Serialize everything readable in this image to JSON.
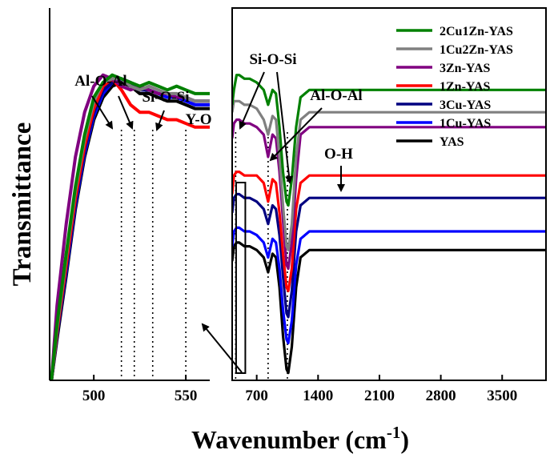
{
  "figure": {
    "ylabel": "Transmittance",
    "xlabel_main": "Wavenumber (cm",
    "xlabel_sup": "-1",
    "xlabel_close": ")"
  },
  "chart_data": [
    {
      "type": "line",
      "title": "",
      "xlabel": "Wavenumber (cm-1)",
      "ylabel": "Transmittance",
      "xlim": [
        476,
        563
      ],
      "ylim": [
        0,
        1
      ],
      "xticks": [
        500,
        550
      ],
      "xtick_labels": [
        "500",
        "550"
      ],
      "annotations": [
        {
          "label": "Al-O-Al",
          "x": 515
        },
        {
          "label": "Si-O-Si",
          "x": 532
        },
        {
          "label": "Y-O",
          "x": 550
        }
      ],
      "marker_lines": [
        515,
        522,
        532,
        550
      ],
      "series": [
        {
          "name": "2Cu1Zn-YAS",
          "color": "#008000",
          "x": [
            477,
            480,
            485,
            490,
            495,
            500,
            505,
            510,
            515,
            520,
            525,
            530,
            535,
            540,
            545,
            550,
            555,
            560,
            563
          ],
          "y": [
            0.0,
            0.15,
            0.34,
            0.52,
            0.66,
            0.76,
            0.8,
            0.82,
            0.81,
            0.8,
            0.79,
            0.8,
            0.79,
            0.78,
            0.79,
            0.78,
            0.77,
            0.77,
            0.77
          ]
        },
        {
          "name": "1Cu2Zn-YAS",
          "color": "#808080",
          "x": [
            477,
            480,
            485,
            490,
            495,
            500,
            505,
            510,
            515,
            520,
            525,
            530,
            535,
            540,
            545,
            550,
            555,
            560,
            563
          ],
          "y": [
            0.0,
            0.14,
            0.33,
            0.51,
            0.65,
            0.75,
            0.8,
            0.81,
            0.81,
            0.79,
            0.78,
            0.79,
            0.78,
            0.77,
            0.77,
            0.76,
            0.75,
            0.75,
            0.75
          ]
        },
        {
          "name": "3Zn-YAS",
          "color": "#800080",
          "x": [
            477,
            480,
            485,
            490,
            495,
            500,
            505,
            510,
            515,
            520,
            525,
            530,
            535,
            540,
            545,
            550,
            555,
            560,
            563
          ],
          "y": [
            0.0,
            0.2,
            0.42,
            0.6,
            0.72,
            0.79,
            0.82,
            0.81,
            0.79,
            0.78,
            0.79,
            0.78,
            0.77,
            0.77,
            0.76,
            0.76,
            0.75,
            0.75,
            0.75
          ]
        },
        {
          "name": "1Zn-YAS",
          "color": "#ff0000",
          "x": [
            477,
            480,
            485,
            490,
            495,
            500,
            505,
            510,
            515,
            520,
            525,
            530,
            535,
            540,
            545,
            550,
            555,
            560,
            563
          ],
          "y": [
            0.0,
            0.13,
            0.31,
            0.49,
            0.63,
            0.73,
            0.79,
            0.81,
            0.78,
            0.74,
            0.72,
            0.72,
            0.71,
            0.7,
            0.7,
            0.69,
            0.68,
            0.68,
            0.68
          ]
        },
        {
          "name": "3Cu-YAS",
          "color": "#000080",
          "x": [
            477,
            480,
            485,
            490,
            495,
            500,
            505,
            510,
            515,
            520,
            525,
            530,
            535,
            540,
            545,
            550,
            555,
            560,
            563
          ],
          "y": [
            0.0,
            0.12,
            0.3,
            0.48,
            0.62,
            0.72,
            0.78,
            0.8,
            0.81,
            0.8,
            0.78,
            0.78,
            0.77,
            0.77,
            0.76,
            0.76,
            0.75,
            0.75,
            0.75
          ]
        },
        {
          "name": "1Cu-YAS",
          "color": "#0000ff",
          "x": [
            477,
            480,
            485,
            490,
            495,
            500,
            505,
            510,
            515,
            520,
            525,
            530,
            535,
            540,
            545,
            550,
            555,
            560,
            563
          ],
          "y": [
            0.0,
            0.12,
            0.29,
            0.47,
            0.61,
            0.71,
            0.77,
            0.8,
            0.81,
            0.79,
            0.78,
            0.78,
            0.77,
            0.76,
            0.76,
            0.75,
            0.74,
            0.74,
            0.74
          ]
        },
        {
          "name": "YAS",
          "color": "#000000",
          "x": [
            477,
            480,
            485,
            490,
            495,
            500,
            505,
            510,
            515,
            520,
            525,
            530,
            535,
            540,
            545,
            550,
            555,
            560,
            563
          ],
          "y": [
            0.0,
            0.11,
            0.28,
            0.46,
            0.6,
            0.7,
            0.76,
            0.79,
            0.8,
            0.79,
            0.77,
            0.77,
            0.76,
            0.75,
            0.75,
            0.74,
            0.73,
            0.73,
            0.73
          ]
        }
      ]
    },
    {
      "type": "line",
      "title": "",
      "xlabel": "Wavenumber (cm-1)",
      "ylabel": "Transmittance",
      "xlim": [
        420,
        4000
      ],
      "ylim": [
        0,
        1
      ],
      "xticks": [
        700,
        1400,
        2100,
        2800,
        3500
      ],
      "xtick_labels": [
        "700",
        "1400",
        "2100",
        "2800",
        "3500"
      ],
      "annotations": [
        {
          "label": "Si-O-Si",
          "x": 1050
        },
        {
          "label": "Al-O-Al",
          "x": 830
        },
        {
          "label": "O-H",
          "x": 1650
        }
      ],
      "marker_lines": [
        460,
        830,
        1050
      ],
      "inset_box_wavenumber": [
        465,
        570
      ],
      "legend_position": "top-right",
      "series": [
        {
          "name": "2Cu1Zn-YAS",
          "color": "#008000",
          "x": [
            420,
            440,
            470,
            500,
            560,
            620,
            700,
            780,
            830,
            880,
            920,
            960,
            1000,
            1040,
            1060,
            1100,
            1150,
            1200,
            1300,
            1400,
            1600,
            2000,
            2500,
            3000,
            3500,
            4000
          ],
          "y": [
            0.74,
            0.78,
            0.82,
            0.82,
            0.81,
            0.81,
            0.8,
            0.78,
            0.74,
            0.78,
            0.77,
            0.68,
            0.56,
            0.48,
            0.47,
            0.54,
            0.68,
            0.76,
            0.78,
            0.78,
            0.78,
            0.78,
            0.78,
            0.78,
            0.78,
            0.78
          ]
        },
        {
          "name": "1Cu2Zn-YAS",
          "color": "#808080",
          "x": [
            420,
            440,
            470,
            500,
            560,
            620,
            700,
            780,
            830,
            880,
            920,
            960,
            1000,
            1040,
            1060,
            1100,
            1150,
            1200,
            1300,
            1400,
            1600,
            2000,
            2500,
            3000,
            3500,
            4000
          ],
          "y": [
            0.72,
            0.75,
            0.75,
            0.75,
            0.74,
            0.74,
            0.73,
            0.7,
            0.66,
            0.71,
            0.7,
            0.6,
            0.47,
            0.36,
            0.35,
            0.42,
            0.6,
            0.7,
            0.72,
            0.72,
            0.72,
            0.72,
            0.72,
            0.72,
            0.72,
            0.72
          ]
        },
        {
          "name": "3Zn-YAS",
          "color": "#800080",
          "x": [
            420,
            440,
            470,
            500,
            560,
            620,
            700,
            780,
            830,
            880,
            920,
            960,
            1000,
            1040,
            1060,
            1100,
            1150,
            1200,
            1300,
            1400,
            1600,
            2000,
            2500,
            3000,
            3500,
            4000
          ],
          "y": [
            0.65,
            0.69,
            0.7,
            0.7,
            0.69,
            0.69,
            0.68,
            0.66,
            0.6,
            0.66,
            0.65,
            0.56,
            0.43,
            0.31,
            0.3,
            0.37,
            0.54,
            0.66,
            0.68,
            0.68,
            0.68,
            0.68,
            0.68,
            0.68,
            0.68,
            0.68
          ]
        },
        {
          "name": "1Zn-YAS",
          "color": "#ff0000",
          "x": [
            420,
            440,
            470,
            500,
            560,
            620,
            700,
            780,
            830,
            880,
            920,
            960,
            1000,
            1040,
            1060,
            1100,
            1150,
            1200,
            1300,
            1400,
            1600,
            2000,
            2500,
            3000,
            3500,
            4000
          ],
          "y": [
            0.5,
            0.55,
            0.56,
            0.56,
            0.55,
            0.55,
            0.55,
            0.53,
            0.48,
            0.54,
            0.53,
            0.45,
            0.34,
            0.25,
            0.24,
            0.3,
            0.46,
            0.53,
            0.55,
            0.55,
            0.55,
            0.55,
            0.55,
            0.55,
            0.55,
            0.55
          ]
        },
        {
          "name": "3Cu-YAS",
          "color": "#000080",
          "x": [
            420,
            440,
            470,
            500,
            560,
            620,
            700,
            780,
            830,
            880,
            920,
            960,
            1000,
            1040,
            1060,
            1100,
            1150,
            1200,
            1300,
            1400,
            1600,
            2000,
            2500,
            3000,
            3500,
            4000
          ],
          "y": [
            0.45,
            0.49,
            0.5,
            0.5,
            0.49,
            0.49,
            0.48,
            0.46,
            0.42,
            0.47,
            0.46,
            0.39,
            0.28,
            0.18,
            0.17,
            0.24,
            0.4,
            0.47,
            0.49,
            0.49,
            0.49,
            0.49,
            0.49,
            0.49,
            0.49,
            0.49
          ]
        },
        {
          "name": "1Cu-YAS",
          "color": "#0000ff",
          "x": [
            420,
            440,
            470,
            500,
            560,
            620,
            700,
            780,
            830,
            880,
            920,
            960,
            1000,
            1040,
            1060,
            1100,
            1150,
            1200,
            1300,
            1400,
            1600,
            2000,
            2500,
            3000,
            3500,
            4000
          ],
          "y": [
            0.36,
            0.4,
            0.41,
            0.41,
            0.4,
            0.4,
            0.39,
            0.37,
            0.33,
            0.38,
            0.37,
            0.3,
            0.19,
            0.11,
            0.1,
            0.16,
            0.31,
            0.38,
            0.4,
            0.4,
            0.4,
            0.4,
            0.4,
            0.4,
            0.4,
            0.4
          ]
        },
        {
          "name": "YAS",
          "color": "#000000",
          "x": [
            420,
            440,
            470,
            500,
            560,
            620,
            700,
            780,
            830,
            880,
            920,
            960,
            1000,
            1040,
            1060,
            1100,
            1150,
            1200,
            1300,
            1400,
            1600,
            2000,
            2500,
            3000,
            3500,
            4000
          ],
          "y": [
            0.32,
            0.36,
            0.37,
            0.37,
            0.36,
            0.36,
            0.35,
            0.33,
            0.29,
            0.34,
            0.33,
            0.25,
            0.12,
            0.03,
            0.02,
            0.09,
            0.25,
            0.33,
            0.35,
            0.35,
            0.35,
            0.35,
            0.35,
            0.35,
            0.35,
            0.35
          ]
        }
      ]
    }
  ]
}
